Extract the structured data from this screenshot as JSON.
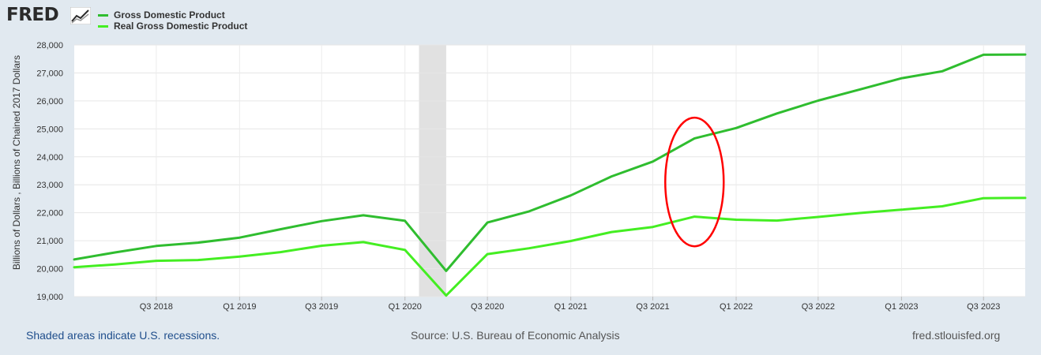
{
  "header": {
    "logo_text": "FRED",
    "logo_icon": "line-graph-icon"
  },
  "legend": [
    {
      "label": "Gross Domestic Product",
      "color": "#2fbd2f"
    },
    {
      "label": "Real Gross Domestic Product",
      "color": "#44ee22"
    }
  ],
  "footer": {
    "recession_note": "Shaded areas indicate U.S. recessions.",
    "source": "Source: U.S. Bureau of Economic Analysis",
    "site": "fred.stlouisfed.org"
  },
  "annotation": {
    "shape": "ellipse",
    "color": "#ff0000",
    "around_quarter": "2021-Q4"
  },
  "chart_data": {
    "type": "line",
    "ylabel": "Billions of Dollars , Billions of Chained 2017 Dollars",
    "ylim": [
      19000,
      28000
    ],
    "yticks": [
      19000,
      20000,
      21000,
      22000,
      23000,
      24000,
      25000,
      26000,
      27000,
      28000
    ],
    "ytick_labels": [
      "19,000",
      "20,000",
      "21,000",
      "22,000",
      "23,000",
      "24,000",
      "25,000",
      "26,000",
      "27,000",
      "28,000"
    ],
    "xlim": [
      "2018-01-01",
      "2023-10-01"
    ],
    "xtick_dates": [
      "2018-07-01",
      "2019-01-01",
      "2019-07-01",
      "2020-01-01",
      "2020-07-01",
      "2021-01-01",
      "2021-07-01",
      "2022-01-01",
      "2022-07-01",
      "2023-01-01",
      "2023-07-01"
    ],
    "xtick_labels": [
      "Q3 2018",
      "Q1 2019",
      "Q3 2019",
      "Q1 2020",
      "Q3 2020",
      "Q1 2021",
      "Q3 2021",
      "Q1 2022",
      "Q3 2022",
      "Q1 2023",
      "Q3 2023"
    ],
    "recession": [
      "2020-02-01",
      "2020-04-01"
    ],
    "grid": true,
    "x": [
      "2018-01-01",
      "2018-04-01",
      "2018-07-01",
      "2018-10-01",
      "2019-01-01",
      "2019-04-01",
      "2019-07-01",
      "2019-10-01",
      "2020-01-01",
      "2020-04-01",
      "2020-07-01",
      "2020-10-01",
      "2021-01-01",
      "2021-04-01",
      "2021-07-01",
      "2021-10-01",
      "2022-01-01",
      "2022-04-01",
      "2022-07-01",
      "2022-10-01",
      "2023-01-01",
      "2023-04-01",
      "2023-07-01",
      "2023-10-01"
    ],
    "series": [
      {
        "name": "Gross Domestic Product",
        "color": "#2fbd2f",
        "values": [
          20330,
          20580,
          20810,
          20930,
          21110,
          21410,
          21700,
          21910,
          21710,
          19920,
          21650,
          22050,
          22620,
          23300,
          23830,
          24660,
          25030,
          25550,
          26010,
          26410,
          26810,
          27060,
          27650,
          27660
        ]
      },
      {
        "name": "Real Gross Domestic Product",
        "color": "#44ee22",
        "values": [
          20050,
          20150,
          20280,
          20310,
          20430,
          20590,
          20820,
          20950,
          20670,
          19040,
          20520,
          20730,
          20990,
          21310,
          21490,
          21860,
          21750,
          21720,
          21850,
          21990,
          22110,
          22230,
          22520,
          22530
        ]
      }
    ]
  }
}
